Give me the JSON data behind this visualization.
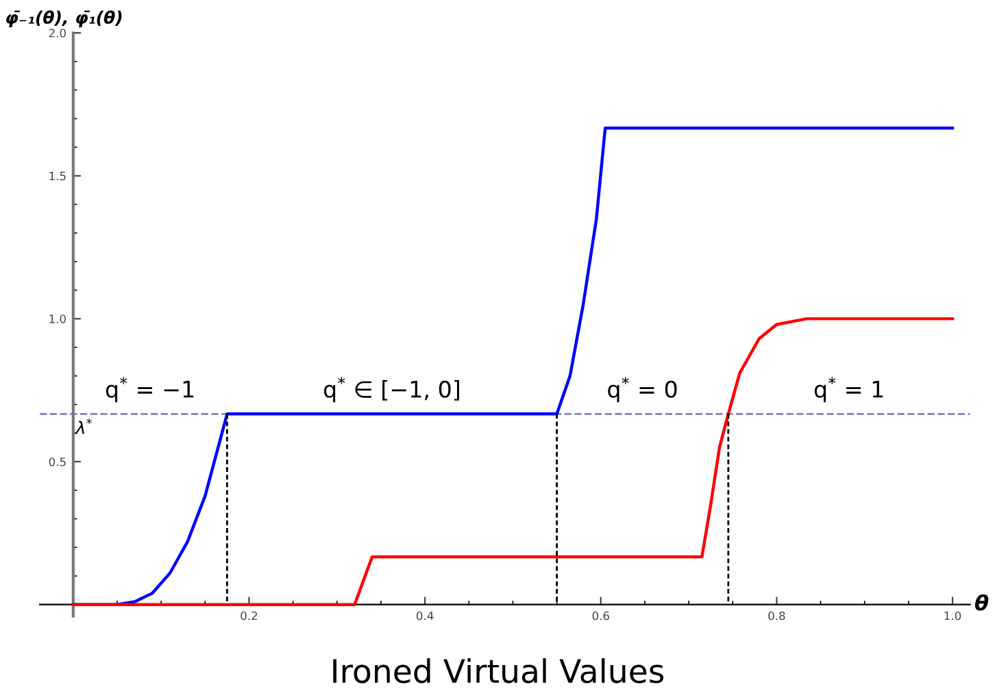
{
  "chart_data": {
    "type": "line",
    "title": "Ironed Virtual Values",
    "xlabel": "θ",
    "ylabel": "φ̄₋₁(θ), φ̄₁(θ)",
    "series": [
      {
        "color": "#0000ff",
        "x": [
          0,
          0.05,
          0.07,
          0.09,
          0.11,
          0.13,
          0.15,
          0.175,
          0.55,
          0.565,
          0.58,
          0.595,
          0.605,
          1.0
        ],
        "values": [
          0,
          0,
          0.01,
          0.04,
          0.11,
          0.22,
          0.38,
          0.667,
          0.667,
          0.8,
          1.05,
          1.35,
          1.667,
          1.667
        ]
      },
      {
        "color": "#ff0000",
        "x": [
          0,
          0.32,
          0.34,
          0.715,
          0.725,
          0.735,
          0.745,
          0.758,
          0.78,
          0.8,
          0.834,
          1.0
        ],
        "values": [
          0,
          0,
          0.167,
          0.167,
          0.35,
          0.55,
          0.667,
          0.81,
          0.93,
          0.98,
          1.0,
          1.0
        ]
      },
      {
        "color": "#000000",
        "line_style": "dashed",
        "x": [
          0.175,
          0.175
        ],
        "values": [
          0,
          0.667
        ]
      },
      {
        "color": "#000000",
        "line_style": "dashed",
        "x": [
          0.55,
          0.55
        ],
        "values": [
          0,
          0.667
        ]
      },
      {
        "color": "#000000",
        "line_style": "dashed",
        "x": [
          0.745,
          0.745
        ],
        "values": [
          0,
          0.667
        ]
      }
    ],
    "ref_lines": [
      {
        "axis": "y",
        "value": 0.667,
        "label": "λ$^{*}$",
        "color": "#8080c0",
        "line_style": "dashed"
      }
    ],
    "annotations": [
      "q$^{*}$ = −1",
      "q$^{*}$ ∈ [−1, 0]",
      "q$^{*}$ = 0",
      "q$^{*}$ = 1"
    ],
    "xlim": [
      -0.038,
      1.02
    ],
    "ylim": [
      -0.04,
      2.0
    ],
    "xticks": [
      0.2,
      0.4,
      0.6,
      0.8,
      {
        "value": 1,
        "label": "1.0"
      }
    ],
    "yticks": [
      0.5,
      {
        "value": 1,
        "label": "1.0"
      },
      1.5,
      {
        "value": 2,
        "label": "2.0"
      }
    ],
    "grid": false,
    "legend": false,
    "marker": "none",
    "line_style": "solid"
  }
}
